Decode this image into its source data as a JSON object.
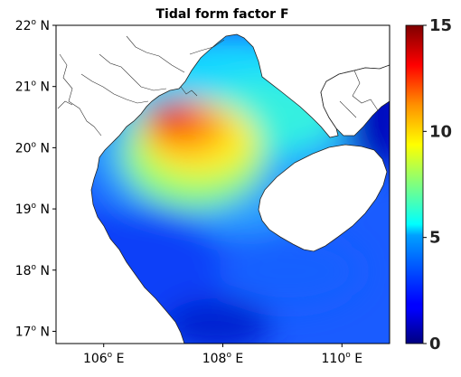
{
  "map": {
    "title": "Tidal form factor F",
    "lat_ticks": [
      {
        "deg": "22",
        "sup": "o",
        "hemi": "N"
      },
      {
        "deg": "21",
        "sup": "o",
        "hemi": "N"
      },
      {
        "deg": "20",
        "sup": "o",
        "hemi": "N"
      },
      {
        "deg": "19",
        "sup": "o",
        "hemi": "N"
      },
      {
        "deg": "18",
        "sup": "o",
        "hemi": "N"
      },
      {
        "deg": "17",
        "sup": "o",
        "hemi": "N"
      }
    ],
    "lon_ticks": [
      {
        "deg": "106",
        "sup": "o",
        "hemi": "E"
      },
      {
        "deg": "108",
        "sup": "o",
        "hemi": "E"
      },
      {
        "deg": "110",
        "sup": "o",
        "hemi": "E"
      }
    ],
    "lat_values": [
      22,
      21,
      20,
      19,
      18,
      17
    ],
    "lon_values": [
      106,
      108,
      110
    ],
    "lat_range": [
      16.8,
      22.0
    ],
    "lon_range": [
      105.2,
      110.8
    ],
    "colorbar": {
      "min": 0,
      "max": 15,
      "tick_values": [
        0,
        5,
        10,
        15
      ],
      "tick_labels": [
        "0",
        "5",
        "10",
        "15"
      ],
      "colormap": "jet"
    }
  }
}
